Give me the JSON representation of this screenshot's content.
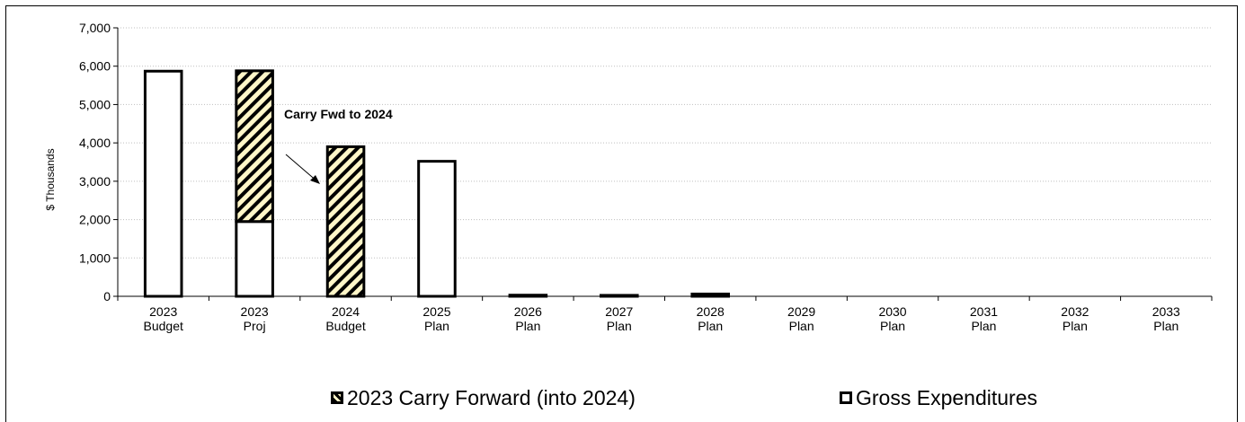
{
  "chart_data": {
    "type": "bar",
    "stacked": true,
    "categories": [
      [
        "2023",
        "Budget"
      ],
      [
        "2023",
        "Proj"
      ],
      [
        "2024",
        "Budget"
      ],
      [
        "2025",
        "Plan"
      ],
      [
        "2026",
        "Plan"
      ],
      [
        "2027",
        "Plan"
      ],
      [
        "2028",
        "Plan"
      ],
      [
        "2029",
        "Plan"
      ],
      [
        "2030",
        "Plan"
      ],
      [
        "2031",
        "Plan"
      ],
      [
        "2032",
        "Plan"
      ],
      [
        "2033",
        "Plan"
      ]
    ],
    "series": [
      {
        "name": "Gross Expenditures",
        "values": [
          5870,
          1950,
          0,
          3520,
          30,
          25,
          60,
          0,
          0,
          0,
          0,
          0
        ],
        "pattern": "solid",
        "fill": "#ffffff"
      },
      {
        "name": "2023 Carry Forward (into 2024)",
        "values": [
          0,
          3930,
          3900,
          0,
          0,
          0,
          0,
          0,
          0,
          0,
          0,
          0
        ],
        "pattern": "hatch",
        "fill": "#fff6c8"
      }
    ],
    "ylabel": "$ Thousands",
    "ylim": [
      0,
      7000
    ],
    "yticks": [
      0,
      1000,
      2000,
      3000,
      4000,
      5000,
      6000,
      7000
    ],
    "ytick_labels": [
      "0",
      "1,000",
      "2,000",
      "3,000",
      "4,000",
      "5,000",
      "6,000",
      "7,000"
    ],
    "grid": true,
    "legend_position": "bottom",
    "legend": [
      "2023 Carry Forward (into 2024)",
      "Gross Expenditures"
    ],
    "annotation": {
      "text": "Carry Fwd to 2024",
      "points_to_category": 2
    }
  }
}
